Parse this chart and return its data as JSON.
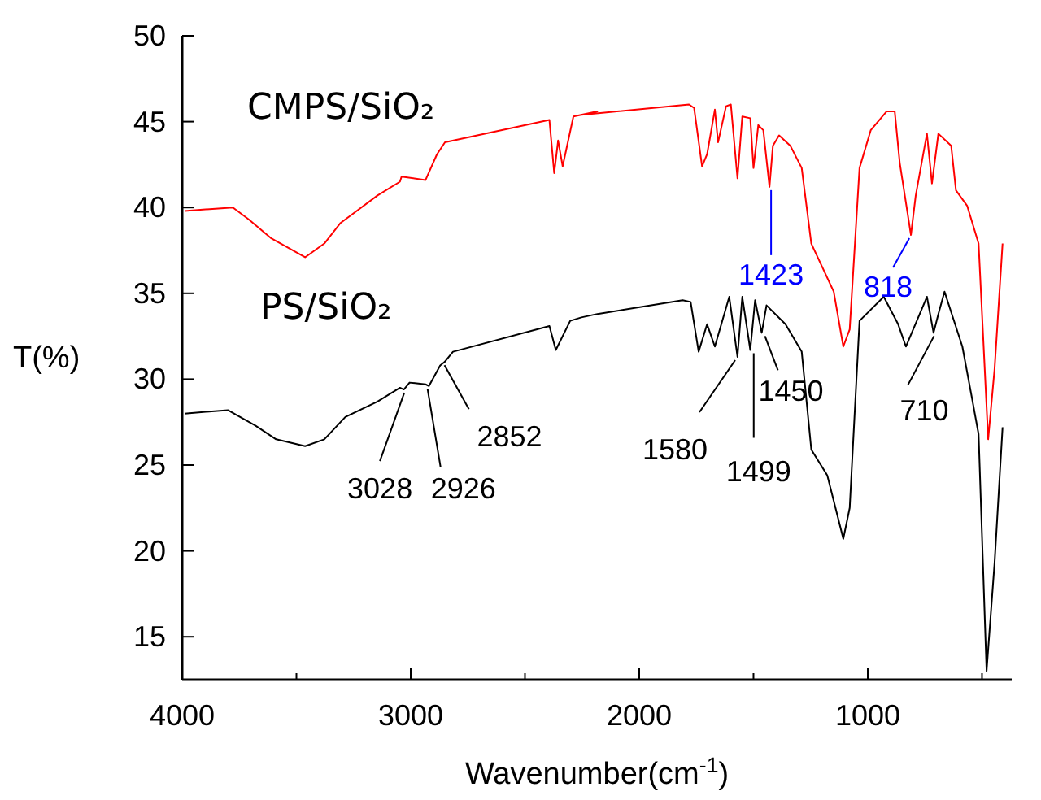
{
  "chart_data": {
    "type": "line",
    "xlabel": "Wavenumber(cm$^{-1}$)",
    "ylabel": "T(%)",
    "xlim": [
      4000,
      370
    ],
    "ylim": [
      12.5,
      50
    ],
    "xticks": [
      4000,
      {
        "value": 3500,
        "label": null
      },
      3000,
      {
        "value": 2500,
        "label": null
      },
      2000,
      {
        "value": 1500,
        "label": null
      },
      1000,
      {
        "value": 500,
        "label": null
      }
    ],
    "yticks": [
      15,
      20,
      25,
      30,
      35,
      40,
      45,
      50
    ],
    "grid": false,
    "marker": "none",
    "line_style": "solid",
    "series": [
      {
        "name": "CMPS/SiO₂",
        "color": "#ff0000",
        "x": [
          3989,
          3778,
          3708,
          3610,
          3462,
          3378,
          3307,
          3145,
          3047,
          3040,
          2935,
          2885,
          2850,
          2393,
          2372,
          2355,
          2335,
          2288,
          2183,
          2253,
          1782,
          1760,
          1725,
          1703,
          1669,
          1655,
          1620,
          1599,
          1570,
          1549,
          1514,
          1500,
          1479,
          1457,
          1430,
          1415,
          1388,
          1339,
          1289,
          1247,
          1198,
          1149,
          1107,
          1079,
          1036,
          987,
          917,
          882,
          860,
          811,
          790,
          741,
          719,
          691,
          635,
          614,
          565,
          515,
          473,
          445,
          410
        ],
        "values": [
          39.8,
          40.0,
          39.3,
          38.2,
          37.1,
          37.9,
          39.1,
          40.7,
          41.5,
          41.8,
          41.6,
          43.1,
          43.8,
          45.1,
          42.0,
          43.9,
          42.4,
          45.3,
          45.6,
          45.4,
          46.0,
          45.8,
          42.4,
          43.1,
          45.7,
          43.8,
          45.9,
          46.0,
          41.7,
          45.3,
          45.2,
          42.3,
          44.8,
          44.5,
          41.2,
          43.6,
          44.2,
          43.6,
          42.3,
          37.9,
          36.5,
          35.1,
          31.9,
          32.9,
          42.3,
          44.5,
          45.6,
          45.6,
          42.6,
          38.4,
          40.7,
          44.3,
          41.4,
          44.3,
          43.6,
          41.0,
          40.1,
          37.9,
          26.5,
          30.6,
          37.9
        ]
      },
      {
        "name": "PS/SiO₂",
        "color": "#000000",
        "x": [
          3989,
          3800,
          3680,
          3589,
          3462,
          3378,
          3286,
          3145,
          3047,
          3030,
          3005,
          2935,
          2920,
          2871,
          2852,
          2815,
          2393,
          2365,
          2302,
          2253,
          2183,
          1810,
          1775,
          1740,
          1703,
          1669,
          1606,
          1570,
          1549,
          1514,
          1493,
          1464,
          1443,
          1360,
          1289,
          1247,
          1177,
          1107,
          1079,
          1036,
          930,
          867,
          833,
          741,
          712,
          691,
          664,
          586,
          544,
          515,
          480,
          445,
          410
        ],
        "values": [
          28.0,
          28.2,
          27.3,
          26.5,
          26.1,
          26.5,
          27.8,
          28.7,
          29.5,
          29.4,
          29.8,
          29.7,
          29.6,
          30.8,
          31.0,
          31.6,
          33.1,
          31.7,
          33.4,
          33.6,
          33.8,
          34.6,
          34.5,
          31.6,
          33.2,
          31.9,
          34.8,
          31.3,
          34.8,
          31.7,
          34.6,
          32.7,
          34.3,
          33.2,
          31.6,
          25.9,
          24.4,
          20.7,
          22.5,
          33.4,
          34.8,
          33.2,
          31.9,
          34.8,
          32.7,
          33.8,
          35.1,
          31.9,
          28.9,
          26.8,
          13.0,
          19.3,
          27.2
        ]
      }
    ],
    "annotations": [
      {
        "text": "1423",
        "x": 1423,
        "y": 41.2
      },
      {
        "text": "818",
        "x": 818,
        "y": 38.4
      },
      {
        "text": "3028",
        "x": 3028,
        "y": 29.4
      },
      {
        "text": "2926",
        "x": 2926,
        "y": 29.6
      },
      {
        "text": "2852",
        "x": 2852,
        "y": 31.0
      },
      {
        "text": "1580",
        "x": 1580,
        "y": 31.3
      },
      {
        "text": "1499",
        "x": 1499,
        "y": 31.7
      },
      {
        "text": "1450",
        "x": 1450,
        "y": 32.7
      },
      {
        "text": "710",
        "x": 710,
        "y": 32.7
      }
    ]
  }
}
